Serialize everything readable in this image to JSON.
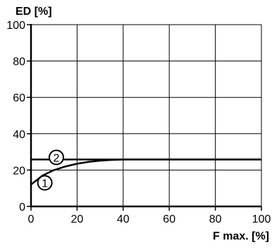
{
  "chart_data": {
    "type": "line",
    "title": "",
    "xlabel": "F max. [%]",
    "ylabel": "ED [%]",
    "xlim": [
      0,
      100
    ],
    "ylim": [
      0,
      100
    ],
    "x_ticks": [
      0,
      20,
      40,
      60,
      80,
      100
    ],
    "y_ticks": [
      0,
      20,
      40,
      60,
      80,
      100
    ],
    "grid": true,
    "series": [
      {
        "marker_label": "1",
        "x": [
          0,
          5,
          10,
          15,
          20,
          25,
          30,
          35,
          40,
          50,
          60,
          70,
          80,
          90,
          100
        ],
        "y": [
          12,
          17,
          20,
          22,
          23.5,
          24.5,
          25.2,
          25.6,
          25.8,
          25.8,
          25.8,
          25.8,
          25.8,
          25.8,
          25.8
        ]
      },
      {
        "marker_label": "2",
        "x": [
          0,
          100
        ],
        "y": [
          25.8,
          25.8
        ]
      }
    ],
    "callouts": [
      {
        "label": "1",
        "x": 6,
        "y": 13
      },
      {
        "label": "2",
        "x": 11,
        "y": 27
      }
    ],
    "colors": {
      "line": "#000000",
      "grid": "#000000",
      "background": "#ffffff"
    }
  }
}
